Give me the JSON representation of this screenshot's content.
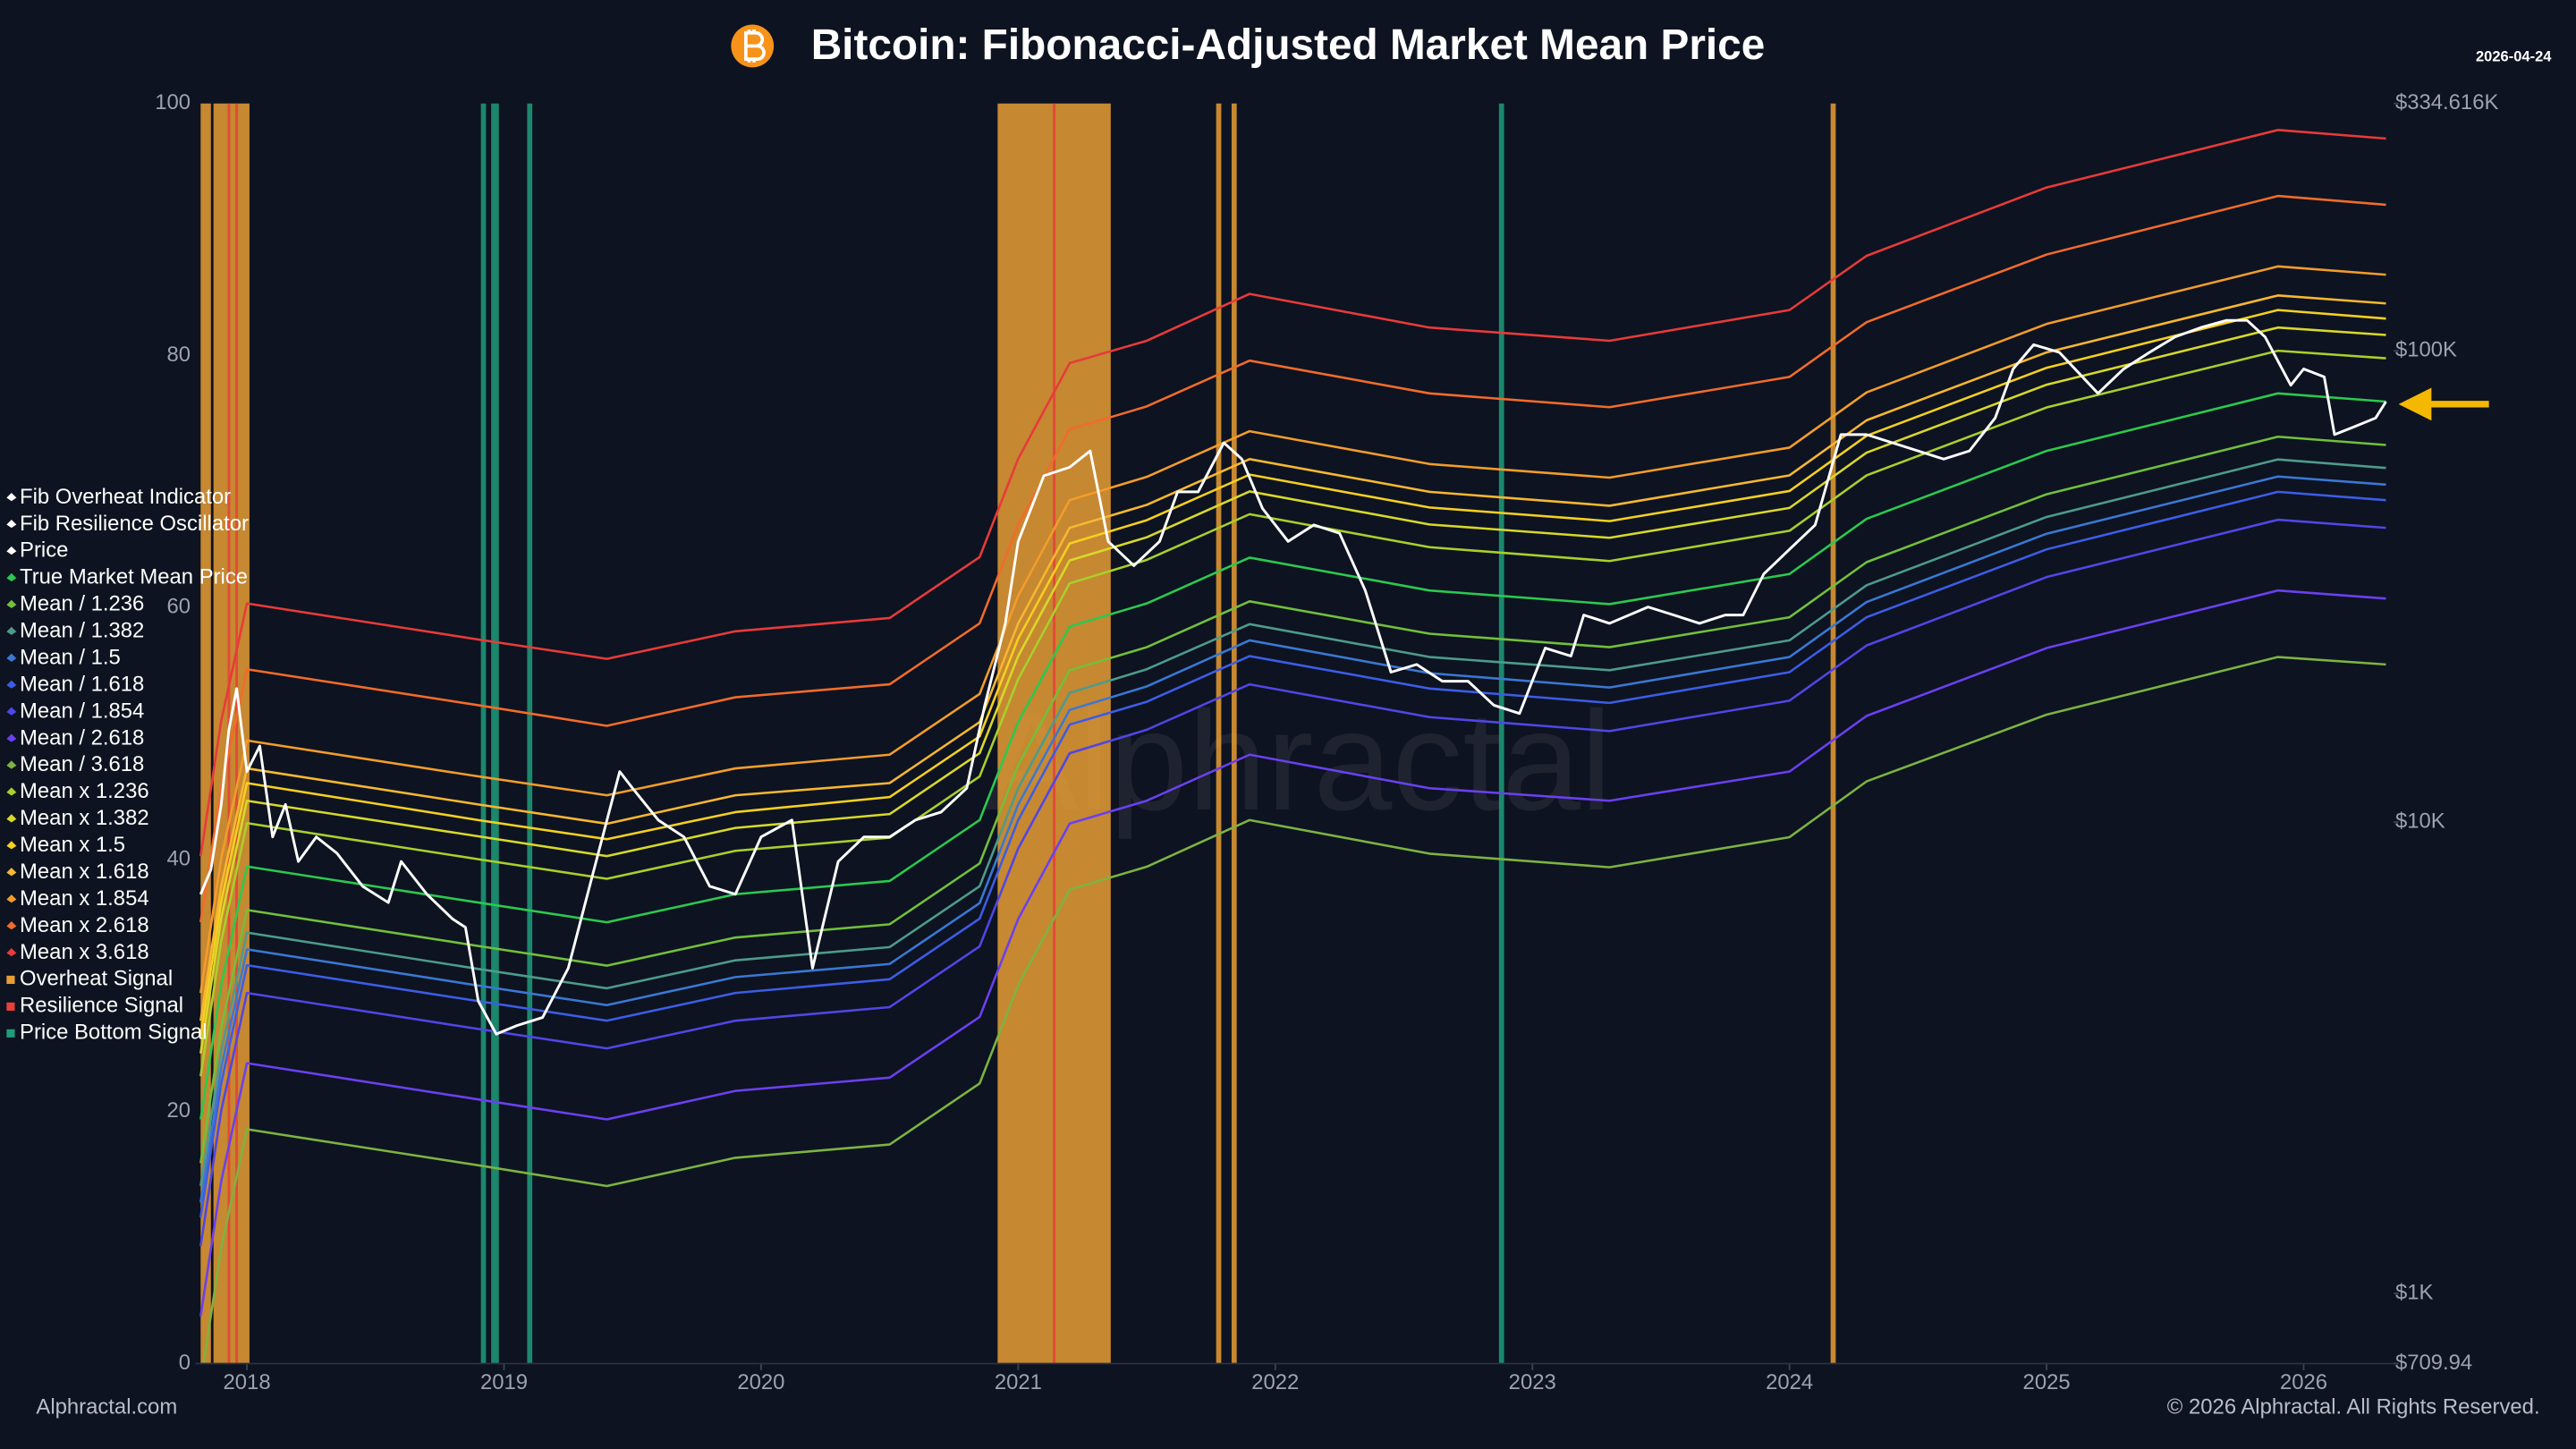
{
  "chart_data": {
    "type": "line",
    "title": "Bitcoin: Fibonacci-Adjusted Market Mean Price",
    "date": "2026-04-24",
    "watermark": "Alphractal",
    "footer_left": "Alphractal.com",
    "footer_right": "© 2026 Alphractal. All Rights Reserved.",
    "xlim": [
      2017.8,
      2026.35
    ],
    "xticks": [
      2018,
      2019,
      2020,
      2021,
      2022,
      2023,
      2024,
      2025,
      2026
    ],
    "ylim": [
      0,
      100
    ],
    "yticks": [
      0,
      20,
      40,
      60,
      80,
      100
    ],
    "y2lim": [
      709.94,
      334616
    ],
    "y2_log": true,
    "y2ticks": [
      {
        "value": 709.94,
        "label": "$709.94"
      },
      {
        "value": 1000,
        "label": "$1K"
      },
      {
        "value": 10000,
        "label": "$10K"
      },
      {
        "value": 100000,
        "label": "$100K"
      },
      {
        "value": 334616,
        "label": "$334.616K"
      }
    ],
    "grid": false,
    "legend": "left",
    "indicators": [
      {
        "name": "Fib Overheat Indicator",
        "color": "#ffffff"
      },
      {
        "name": "Fib Resilience Oscillator",
        "color": "#ffffff"
      }
    ],
    "x": [
      2017.82,
      2017.9,
      2018.0,
      2018.9,
      2019.4,
      2019.9,
      2020.5,
      2020.85,
      2021.0,
      2021.2,
      2021.5,
      2021.9,
      2022.6,
      2023.3,
      2024.0,
      2024.3,
      2025.0,
      2025.9,
      2026.32
    ],
    "series": [
      {
        "name": "Price",
        "color": "#ffffff",
        "axis": "y2",
        "x": [
          2017.82,
          2017.86,
          2017.9,
          2017.93,
          2017.96,
          2018.0,
          2018.05,
          2018.1,
          2018.15,
          2018.2,
          2018.27,
          2018.35,
          2018.45,
          2018.55,
          2018.6,
          2018.7,
          2018.8,
          2018.85,
          2018.9,
          2018.97,
          2019.05,
          2019.15,
          2019.25,
          2019.35,
          2019.45,
          2019.5,
          2019.6,
          2019.7,
          2019.8,
          2019.9,
          2020.0,
          2020.12,
          2020.2,
          2020.3,
          2020.4,
          2020.5,
          2020.6,
          2020.7,
          2020.8,
          2020.87,
          2020.95,
          2021.0,
          2021.1,
          2021.2,
          2021.28,
          2021.35,
          2021.45,
          2021.55,
          2021.62,
          2021.7,
          2021.8,
          2021.87,
          2021.95,
          2022.05,
          2022.15,
          2022.25,
          2022.35,
          2022.45,
          2022.55,
          2022.65,
          2022.75,
          2022.85,
          2022.95,
          2023.05,
          2023.15,
          2023.2,
          2023.3,
          2023.45,
          2023.55,
          2023.65,
          2023.75,
          2023.82,
          2023.9,
          2024.0,
          2024.1,
          2024.2,
          2024.3,
          2024.4,
          2024.5,
          2024.6,
          2024.7,
          2024.8,
          2024.87,
          2024.95,
          2025.05,
          2025.2,
          2025.3,
          2025.4,
          2025.5,
          2025.6,
          2025.7,
          2025.78,
          2025.85,
          2025.95,
          2026.0,
          2026.08,
          2026.12,
          2026.2,
          2026.28,
          2026.32
        ],
        "values": [
          7030,
          7930,
          10900,
          15700,
          19200,
          12800,
          14500,
          9300,
          10900,
          8250,
          9300,
          8590,
          7310,
          6750,
          8250,
          7030,
          6230,
          5980,
          4170,
          3550,
          3700,
          3850,
          4900,
          7930,
          12800,
          11800,
          10100,
          9300,
          7310,
          7030,
          9300,
          10100,
          4900,
          8250,
          9300,
          9300,
          10100,
          10500,
          11800,
          17700,
          26400,
          39400,
          54300,
          56600,
          61300,
          39400,
          35000,
          39400,
          50200,
          50200,
          63800,
          58900,
          46300,
          39400,
          42700,
          41000,
          31000,
          20800,
          21600,
          19900,
          19900,
          17700,
          17000,
          23400,
          22500,
          27500,
          26400,
          28600,
          27500,
          26400,
          27500,
          27500,
          33600,
          37900,
          42700,
          66400,
          66400,
          63800,
          61300,
          58900,
          61300,
          72000,
          91500,
          103000,
          99200,
          81200,
          91500,
          99200,
          107000,
          112000,
          116000,
          116000,
          107000,
          84500,
          91500,
          88000,
          66400,
          69100,
          72000,
          78000
        ]
      },
      {
        "name": "True Market Mean Price",
        "color": "#2bc94f",
        "axis": "y2",
        "values": [
          2340,
          4520,
          8050,
          6750,
          6130,
          7030,
          7500,
          10100,
          16300,
          26000,
          29100,
          36400,
          31000,
          29000,
          33600,
          44000,
          61300,
          81200,
          78000
        ]
      },
      {
        "name": "Mean / 1.236",
        "color": "#72bf3c",
        "axis": "y2",
        "values": [
          1890,
          3660,
          6510,
          5460,
          4960,
          5690,
          6070,
          8170,
          13200,
          21000,
          23500,
          29400,
          25100,
          23500,
          27200,
          35600,
          49600,
          65700,
          63100
        ]
      },
      {
        "name": "Mean / 1.382",
        "color": "#4d9b8b",
        "axis": "y2",
        "values": [
          1690,
          3270,
          5830,
          4880,
          4440,
          5090,
          5430,
          7310,
          11800,
          18800,
          21100,
          26300,
          22400,
          21000,
          24300,
          31800,
          44400,
          58800,
          56400
        ]
      },
      {
        "name": "Mean / 1.5",
        "color": "#3a78d4",
        "axis": "y2",
        "values": [
          1560,
          3010,
          5370,
          4500,
          4090,
          4690,
          5000,
          6730,
          10900,
          17300,
          19400,
          24300,
          20700,
          19300,
          22400,
          29300,
          40900,
          54100,
          52000
        ]
      },
      {
        "name": "Mean / 1.618",
        "color": "#3d5ce6",
        "axis": "y2",
        "values": [
          1450,
          2790,
          4970,
          4170,
          3790,
          4340,
          4640,
          6240,
          10100,
          16100,
          18000,
          22500,
          19200,
          17900,
          20800,
          27200,
          37900,
          50200,
          48200
        ]
      },
      {
        "name": "Mean / 1.854",
        "color": "#5046e5",
        "axis": "y2",
        "values": [
          1260,
          2440,
          4340,
          3640,
          3310,
          3790,
          4050,
          5450,
          8790,
          14000,
          15700,
          19600,
          16700,
          15600,
          18100,
          23700,
          33100,
          43800,
          42100
        ]
      },
      {
        "name": "Mean / 2.618",
        "color": "#6a40f0",
        "axis": "y2",
        "values": [
          894,
          1730,
          3080,
          2580,
          2340,
          2690,
          2870,
          3860,
          6230,
          9930,
          11100,
          13900,
          11800,
          11100,
          12800,
          16800,
          23400,
          31000,
          29800
        ]
      },
      {
        "name": "Mean / 3.618",
        "color": "#7cb342",
        "axis": "y2",
        "values": [
          647,
          1250,
          2230,
          1870,
          1690,
          1940,
          2070,
          2790,
          4510,
          7190,
          8040,
          10100,
          8570,
          8020,
          9290,
          12200,
          16900,
          22400,
          21600
        ]
      },
      {
        "name": "Mean x 1.236",
        "color": "#a8d02c",
        "axis": "y2",
        "values": [
          2890,
          5590,
          9950,
          8340,
          7580,
          8690,
          9270,
          12500,
          20100,
          32100,
          36000,
          45000,
          38300,
          35800,
          41500,
          54400,
          75800,
          100000,
          96400
        ]
      },
      {
        "name": "Mean x 1.382",
        "color": "#d8d82a",
        "axis": "y2",
        "values": [
          3230,
          6250,
          11100,
          9330,
          8470,
          9720,
          10400,
          14000,
          22500,
          35900,
          40200,
          50300,
          42800,
          40100,
          46400,
          60800,
          84700,
          112000,
          108000
        ]
      },
      {
        "name": "Mean x 1.5",
        "color": "#f5d020",
        "axis": "y2",
        "values": [
          3510,
          6780,
          12100,
          10100,
          9200,
          10500,
          11300,
          15200,
          24500,
          39000,
          43700,
          54600,
          46500,
          43500,
          50400,
          66000,
          92000,
          122000,
          117000
        ]
      },
      {
        "name": "Mean x 1.618",
        "color": "#f7b731",
        "axis": "y2",
        "values": [
          3790,
          7310,
          13000,
          10900,
          9920,
          11400,
          12100,
          16300,
          26400,
          42100,
          47100,
          58900,
          50200,
          46900,
          54400,
          71200,
          99200,
          131000,
          126000
        ]
      },
      {
        "name": "Mean x 1.854",
        "color": "#f39c2b",
        "axis": "y2",
        "values": [
          4340,
          8380,
          14900,
          12500,
          11400,
          13000,
          13900,
          18700,
          30200,
          48200,
          54000,
          67500,
          57500,
          53800,
          62300,
          81600,
          114000,
          151000,
          145000
        ]
      },
      {
        "name": "Mean x 2.618",
        "color": "#f26b2a",
        "axis": "y2",
        "values": [
          6130,
          11800,
          21100,
          17700,
          16000,
          18400,
          19600,
          26400,
          42700,
          68100,
          76200,
          95300,
          81200,
          75900,
          88000,
          115000,
          160000,
          213000,
          204000
        ]
      },
      {
        "name": "Mean x 3.618",
        "color": "#e83a3a",
        "axis": "y2",
        "values": [
          8470,
          16400,
          29100,
          24400,
          22200,
          25400,
          27100,
          36500,
          59000,
          94100,
          105000,
          132000,
          112000,
          105000,
          122000,
          159000,
          222000,
          294000,
          282000
        ]
      }
    ],
    "signals": [
      {
        "name": "Overheat Signal",
        "color": "#e89d35",
        "spans": [
          [
            2017.82,
            2017.86
          ],
          [
            2017.87,
            2018.01
          ],
          [
            2020.92,
            2021.36
          ],
          [
            2021.77,
            2021.79
          ],
          [
            2021.83,
            2021.85
          ],
          [
            2024.16,
            2024.18
          ]
        ]
      },
      {
        "name": "Resilience Signal",
        "color": "#e8403a",
        "spans": [
          [
            2017.925,
            2017.935
          ],
          [
            2017.955,
            2017.965
          ],
          [
            2021.135,
            2021.145
          ]
        ]
      },
      {
        "name": "Price Bottom Signal",
        "color": "#1f9c7a",
        "spans": [
          [
            2018.91,
            2018.93
          ],
          [
            2018.95,
            2018.98
          ],
          [
            2019.09,
            2019.11
          ],
          [
            2022.87,
            2022.89
          ]
        ]
      }
    ]
  }
}
